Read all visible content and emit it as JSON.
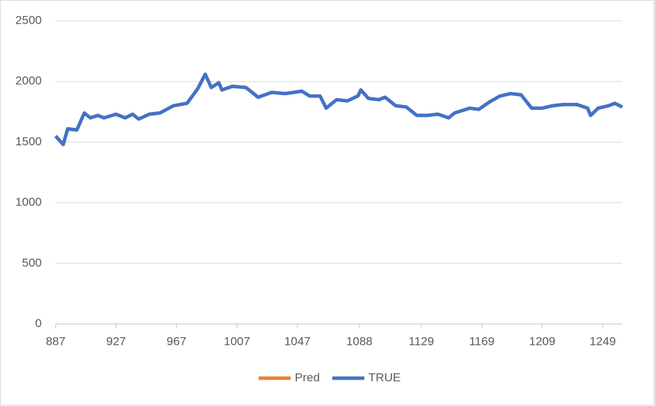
{
  "chart_data": {
    "type": "line",
    "x": [
      887,
      892,
      895,
      901,
      906,
      910,
      915,
      919,
      927,
      933,
      938,
      942,
      949,
      956,
      965,
      974,
      981,
      986,
      990,
      995,
      997,
      1004,
      1013,
      1021,
      1030,
      1039,
      1050,
      1055,
      1062,
      1066,
      1073,
      1080,
      1087,
      1089,
      1094,
      1101,
      1105,
      1112,
      1119,
      1126,
      1133,
      1140,
      1147,
      1151,
      1161,
      1167,
      1174,
      1181,
      1188,
      1195,
      1202,
      1209,
      1216,
      1223,
      1232,
      1239,
      1241,
      1246,
      1253,
      1257,
      1262
    ],
    "series": [
      {
        "name": "Pred",
        "color": "#ed7d31",
        "values": [
          1550,
          1485,
          1605,
          1600,
          1735,
          1705,
          1720,
          1700,
          1730,
          1705,
          1725,
          1695,
          1730,
          1740,
          1795,
          1820,
          1935,
          2050,
          1950,
          1985,
          1935,
          1960,
          1950,
          1875,
          1905,
          1900,
          1915,
          1885,
          1880,
          1785,
          1845,
          1840,
          1875,
          1925,
          1860,
          1850,
          1865,
          1805,
          1790,
          1725,
          1720,
          1730,
          1705,
          1740,
          1775,
          1770,
          1825,
          1875,
          1900,
          1890,
          1785,
          1780,
          1800,
          1810,
          1810,
          1785,
          1725,
          1780,
          1800,
          1815,
          1790
        ]
      },
      {
        "name": "TRUE",
        "color": "#4472c4",
        "values": [
          1550,
          1480,
          1610,
          1600,
          1740,
          1700,
          1720,
          1700,
          1730,
          1700,
          1730,
          1690,
          1730,
          1740,
          1800,
          1820,
          1940,
          2060,
          1950,
          1990,
          1930,
          1960,
          1950,
          1870,
          1910,
          1900,
          1920,
          1880,
          1880,
          1780,
          1850,
          1840,
          1880,
          1930,
          1860,
          1850,
          1870,
          1800,
          1790,
          1720,
          1720,
          1730,
          1700,
          1740,
          1780,
          1770,
          1830,
          1880,
          1900,
          1890,
          1780,
          1780,
          1800,
          1810,
          1810,
          1780,
          1720,
          1780,
          1800,
          1820,
          1790
        ]
      }
    ],
    "xlim": [
      887,
      1262
    ],
    "xticks": [
      887,
      927,
      967,
      1007,
      1047,
      1088,
      1129,
      1169,
      1209,
      1249
    ],
    "ylim": [
      0,
      2500
    ],
    "yticks": [
      0,
      500,
      1000,
      1500,
      2000,
      2500
    ],
    "grid": true,
    "legend": "bottom"
  }
}
